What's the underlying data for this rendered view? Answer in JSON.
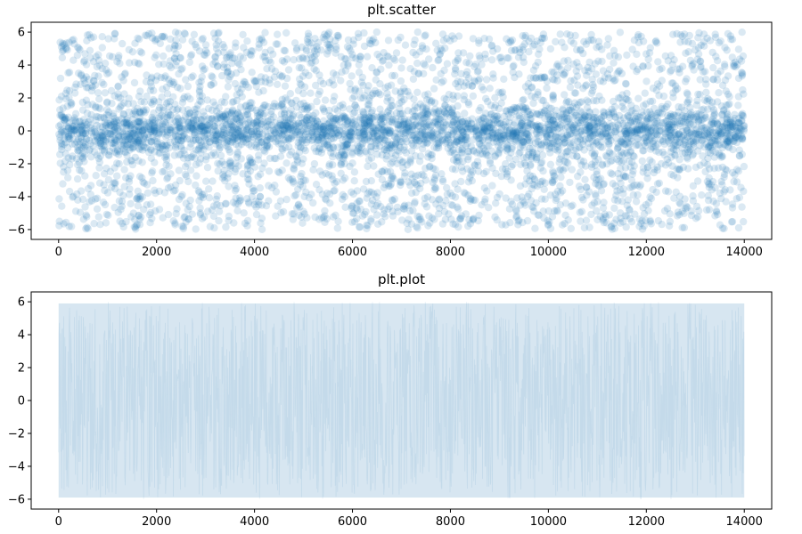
{
  "figure": {
    "background": "#ffffff"
  },
  "chart_data": [
    {
      "type": "scatter",
      "title": "plt.scatter",
      "xlabel": "",
      "ylabel": "",
      "xlim": [
        -560,
        14560
      ],
      "ylim": [
        -6.6,
        6.6
      ],
      "xticks": [
        0,
        2000,
        4000,
        6000,
        8000,
        10000,
        12000,
        14000
      ],
      "yticks": [
        -6,
        -4,
        -2,
        0,
        2,
        4,
        6
      ],
      "grid": false,
      "legend": "none",
      "point_count": 14000,
      "color": "#1f77b4",
      "alpha": 0.1,
      "description_of_distribution": {
        "x_range": [
          0,
          14000
        ],
        "y_range": [
          -6,
          6
        ],
        "core": "dense band concentrated near y = 0 (roughly within ±1.5)",
        "background": "points spread uniformly over the full range from y = -6 to y = 6"
      }
    },
    {
      "type": "line",
      "title": "plt.plot",
      "xlabel": "",
      "ylabel": "",
      "xlim": [
        -560,
        14560
      ],
      "ylim": [
        -6.6,
        6.6
      ],
      "xticks": [
        0,
        2000,
        4000,
        6000,
        8000,
        10000,
        12000,
        14000
      ],
      "yticks": [
        -6,
        -4,
        -2,
        0,
        2,
        4,
        6
      ],
      "grid": false,
      "legend": "none",
      "point_count": 14000,
      "color": "#1f77b4",
      "alpha": 0.2,
      "description_of_distribution": {
        "x_range": [
          0,
          14000
        ],
        "y_range": [
          -6,
          6
        ],
        "envelope": "consecutive values jump between about -6 and 6, filling the band"
      }
    }
  ]
}
